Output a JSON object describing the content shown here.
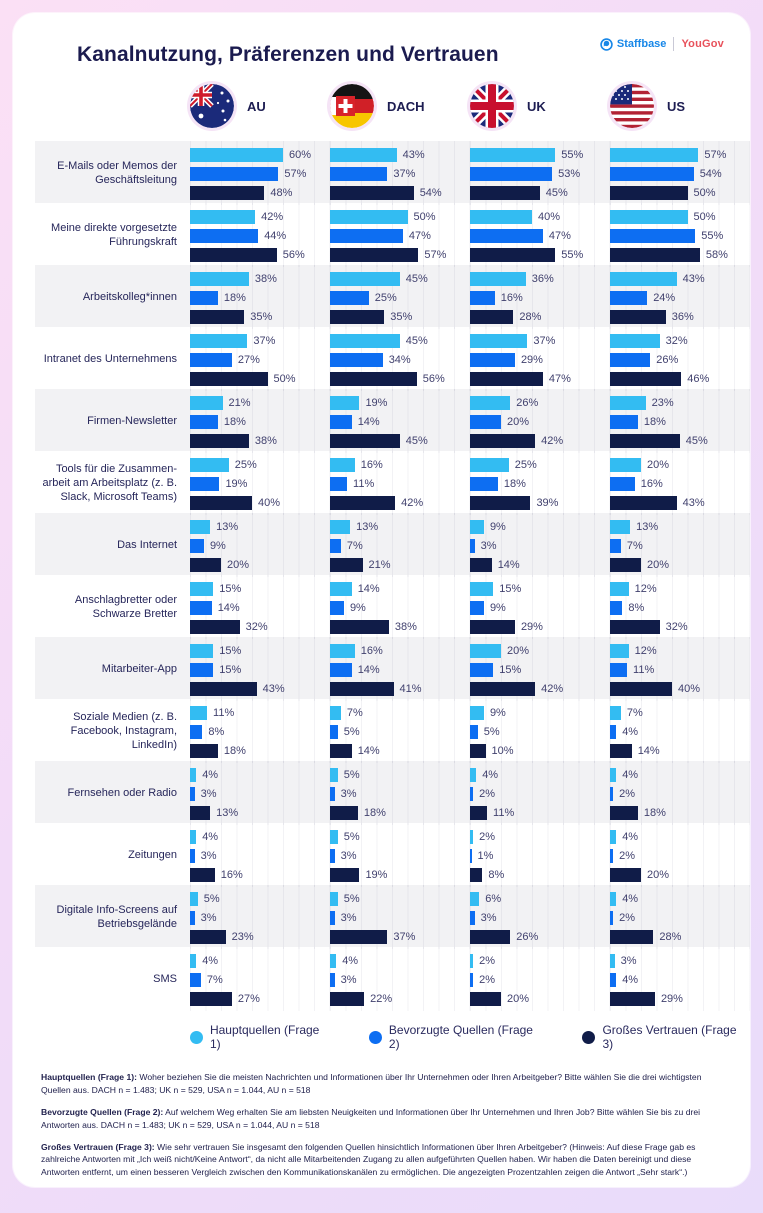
{
  "title": "Kanalnutzung, Präferenzen und Vertrauen",
  "brand": {
    "staffbase": "Staffbase",
    "yougov": "YouGov",
    "staffbase_icon": "staffbase-bubble-icon"
  },
  "legend": [
    {
      "label": "Hauptquellen (Frage 1)",
      "color": "#33bcf2"
    },
    {
      "label": "Bevorzugte Quellen (Frage 2)",
      "color": "#0d6ef2"
    },
    {
      "label": "Großes Vertrauen (Frage 3)",
      "color": "#101c48"
    }
  ],
  "chart_data": {
    "type": "bar",
    "orientation": "horizontal",
    "value_unit": "%",
    "xlim": [
      0,
      100
    ],
    "grid": true,
    "regions": [
      {
        "code": "AU",
        "label": "AU",
        "flag_icon": "flag-au-icon"
      },
      {
        "code": "DACH",
        "label": "DACH",
        "flag_icon": "flag-dach-icon"
      },
      {
        "code": "UK",
        "label": "UK",
        "flag_icon": "flag-uk-icon"
      },
      {
        "code": "US",
        "label": "US",
        "flag_icon": "flag-us-icon"
      }
    ],
    "series_names": [
      "Hauptquellen (Frage 1)",
      "Bevorzugte Quellen (Frage 2)",
      "Großes Vertrauen (Frage 3)"
    ],
    "rows": [
      {
        "label": "E-Mails oder Memos der Geschäftsleitung",
        "values": [
          [
            60,
            57,
            48
          ],
          [
            43,
            37,
            54
          ],
          [
            55,
            53,
            45
          ],
          [
            57,
            54,
            50
          ]
        ]
      },
      {
        "label": "Meine direkte vorgesetzte Führungskraft",
        "values": [
          [
            42,
            44,
            56
          ],
          [
            50,
            47,
            57
          ],
          [
            40,
            47,
            55
          ],
          [
            50,
            55,
            58
          ]
        ]
      },
      {
        "label": "Arbeitskolleg*innen",
        "values": [
          [
            38,
            18,
            35
          ],
          [
            45,
            25,
            35
          ],
          [
            36,
            16,
            28
          ],
          [
            43,
            24,
            36
          ]
        ]
      },
      {
        "label": "Intranet des Unternehmens",
        "values": [
          [
            37,
            27,
            50
          ],
          [
            45,
            34,
            56
          ],
          [
            37,
            29,
            47
          ],
          [
            32,
            26,
            46
          ]
        ]
      },
      {
        "label": "Firmen-Newsletter",
        "values": [
          [
            21,
            18,
            38
          ],
          [
            19,
            14,
            45
          ],
          [
            26,
            20,
            42
          ],
          [
            23,
            18,
            45
          ]
        ]
      },
      {
        "label": "Tools für die Zusammen­arbeit am Arbeitsplatz (z. B. Slack, Microsoft Teams)",
        "values": [
          [
            25,
            19,
            40
          ],
          [
            16,
            11,
            42
          ],
          [
            25,
            18,
            39
          ],
          [
            20,
            16,
            43
          ]
        ]
      },
      {
        "label": "Das Internet",
        "values": [
          [
            13,
            9,
            20
          ],
          [
            13,
            7,
            21
          ],
          [
            9,
            3,
            14
          ],
          [
            13,
            7,
            20
          ]
        ]
      },
      {
        "label": "Anschlagbretter oder Schwarze Bretter",
        "values": [
          [
            15,
            14,
            32
          ],
          [
            14,
            9,
            38
          ],
          [
            15,
            9,
            29
          ],
          [
            12,
            8,
            32
          ]
        ]
      },
      {
        "label": "Mitarbeiter-App",
        "values": [
          [
            15,
            15,
            43
          ],
          [
            16,
            14,
            41
          ],
          [
            20,
            15,
            42
          ],
          [
            12,
            11,
            40
          ]
        ]
      },
      {
        "label": "Soziale Medien (z. B. Facebook, Instagram, LinkedIn)",
        "values": [
          [
            11,
            8,
            18
          ],
          [
            7,
            5,
            14
          ],
          [
            9,
            5,
            10
          ],
          [
            7,
            4,
            14
          ]
        ]
      },
      {
        "label": "Fernsehen oder Radio",
        "values": [
          [
            4,
            3,
            13
          ],
          [
            5,
            3,
            18
          ],
          [
            4,
            2,
            11
          ],
          [
            4,
            2,
            18
          ]
        ]
      },
      {
        "label": "Zeitungen",
        "values": [
          [
            4,
            3,
            16
          ],
          [
            5,
            3,
            19
          ],
          [
            2,
            1,
            8
          ],
          [
            4,
            2,
            20
          ]
        ]
      },
      {
        "label": "Digitale Info-Screens auf Betriebsgelände",
        "values": [
          [
            5,
            3,
            23
          ],
          [
            5,
            3,
            37
          ],
          [
            6,
            3,
            26
          ],
          [
            4,
            2,
            28
          ]
        ]
      },
      {
        "label": "SMS",
        "values": [
          [
            4,
            7,
            27
          ],
          [
            4,
            3,
            22
          ],
          [
            2,
            2,
            20
          ],
          [
            3,
            4,
            29
          ]
        ]
      }
    ]
  },
  "footnotes": [
    {
      "lead": "Hauptquellen (Frage 1):",
      "text": " Woher beziehen Sie die meisten Nachrichten und Informationen über Ihr Unternehmen oder Ihren Arbeitgeber? Bitte wählen Sie die drei wichtigsten Quellen aus. DACH n = 1.483; UK n = 529, USA n = 1.044, AU n = 518"
    },
    {
      "lead": "Bevorzugte Quellen (Frage 2):",
      "text": " Auf welchem Weg erhalten Sie am liebsten Neuigkeiten und Informationen über Ihr Unternehmen und Ihren Job? Bitte wählen Sie bis zu drei Antworten aus. DACH n = 1.483; UK n = 529, USA n = 1.044, AU n = 518"
    },
    {
      "lead": "Großes Vertrauen (Frage 3):",
      "text": " Wie sehr vertrauen Sie insgesamt den folgenden Quellen hinsichtlich Informationen über Ihren Arbeitgeber? (Hinweis: Auf diese Frage gab es zahlreiche Antworten mit „Ich weiß nicht/Keine Antwort“, da nicht alle Mitarbeitenden Zugang zu allen aufgeführten Quellen haben. Wir haben die Daten bereinigt und diese Antworten entfernt, um einen besseren Vergleich zwischen den Kommunikationskanälen zu ermöglichen. Die angezeigten Prozentzahlen zeigen die Antwort „Sehr stark“.)"
    }
  ]
}
